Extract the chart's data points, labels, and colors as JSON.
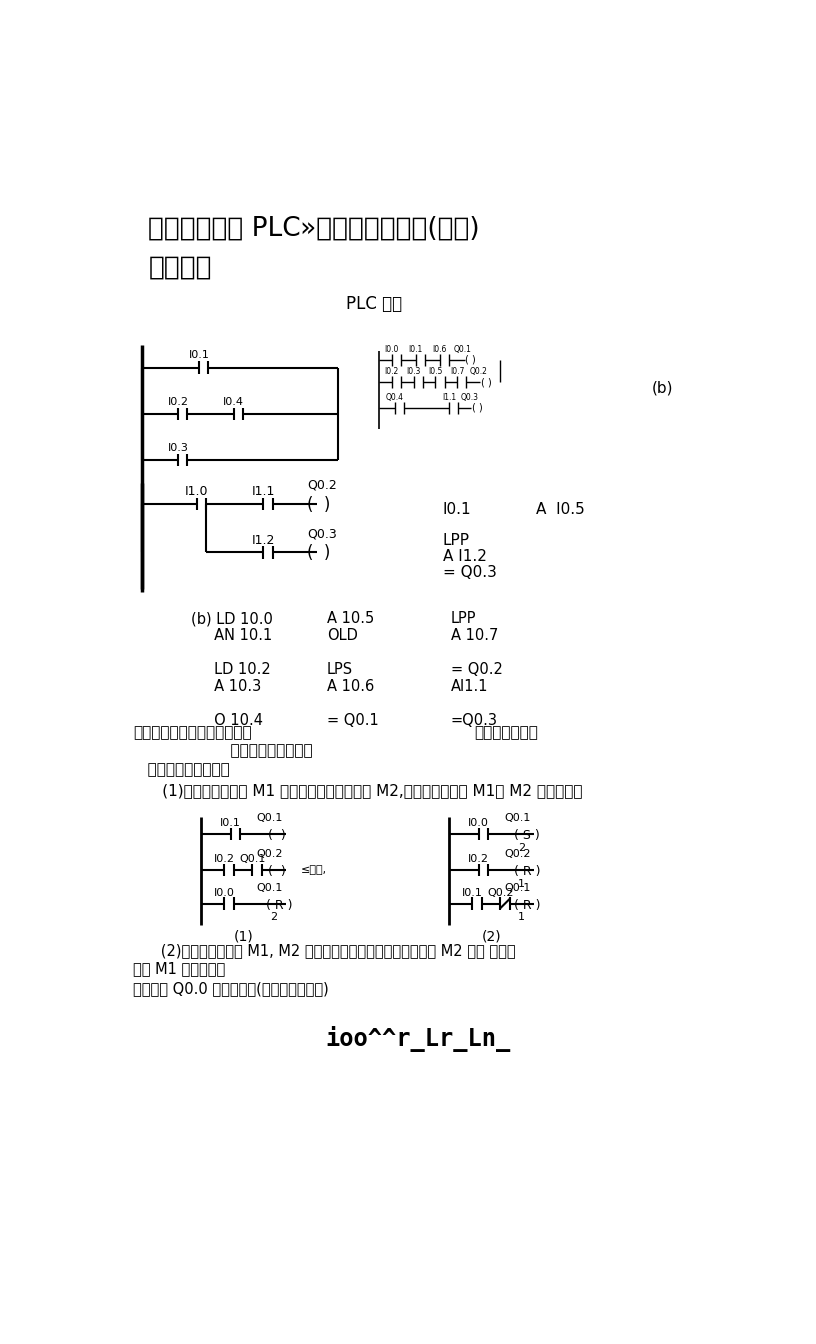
{
  "title1": "《电气控制及 PLC»专业技能训练题(答案)",
  "title2": "有答案哦",
  "subtitle": "PLC 控制",
  "bg_color": "#ffffff",
  "text_color": "#000000",
  "b_label": "(b)",
  "right_text": [
    [
      "I0.1",
      440,
      450
    ],
    [
      "A  I0.5",
      560,
      450
    ]
  ],
  "right_text2": [
    [
      "LPP",
      440,
      490
    ],
    [
      "A I1.2",
      440,
      512
    ],
    [
      "= Q0.3",
      440,
      534
    ]
  ],
  "tbl": {
    "col1": [
      "(b) LD 10.0",
      "     AN 10.1",
      "",
      "     LD 10.2",
      "     A 10.3",
      "",
      "     O 10.4"
    ],
    "col2": [
      "A 10.5",
      "OLD",
      "",
      "LPS",
      "A 10.6",
      "",
      "= Q0.1"
    ],
    "col3": [
      "LPP",
      "A 10.7",
      "",
      "= Q0.2",
      "AI1.1",
      "",
      "=Q0.3"
    ]
  },
  "sec2_line1a": "二、使用置位指令复位指令，",
  "sec2_line1b": "控制要求如下：",
  "sec2_line2": "                    一、写出下图所示梯",
  "sec2_line3": "   形图的语句表程序。",
  "sec2_line4": "      (1)起动时，电动机 M1 先起动才能起动电动机 M2,停止时，电动机 M1、 M2 同时停止。",
  "ladder2_note": "≤程序,",
  "sec3_line1a": "      (2)起动时，电动机 M1, M2 同时起动，停止时，只有在电动机 M2 停止 时，电",
  "sec3_line1b": "动机 M1 才能停止。",
  "sec3_line2": "三、画出 Q0.0 的波形图。(程序实现二分频)",
  "waveform": "ioo^^r_Lr_Ln_"
}
